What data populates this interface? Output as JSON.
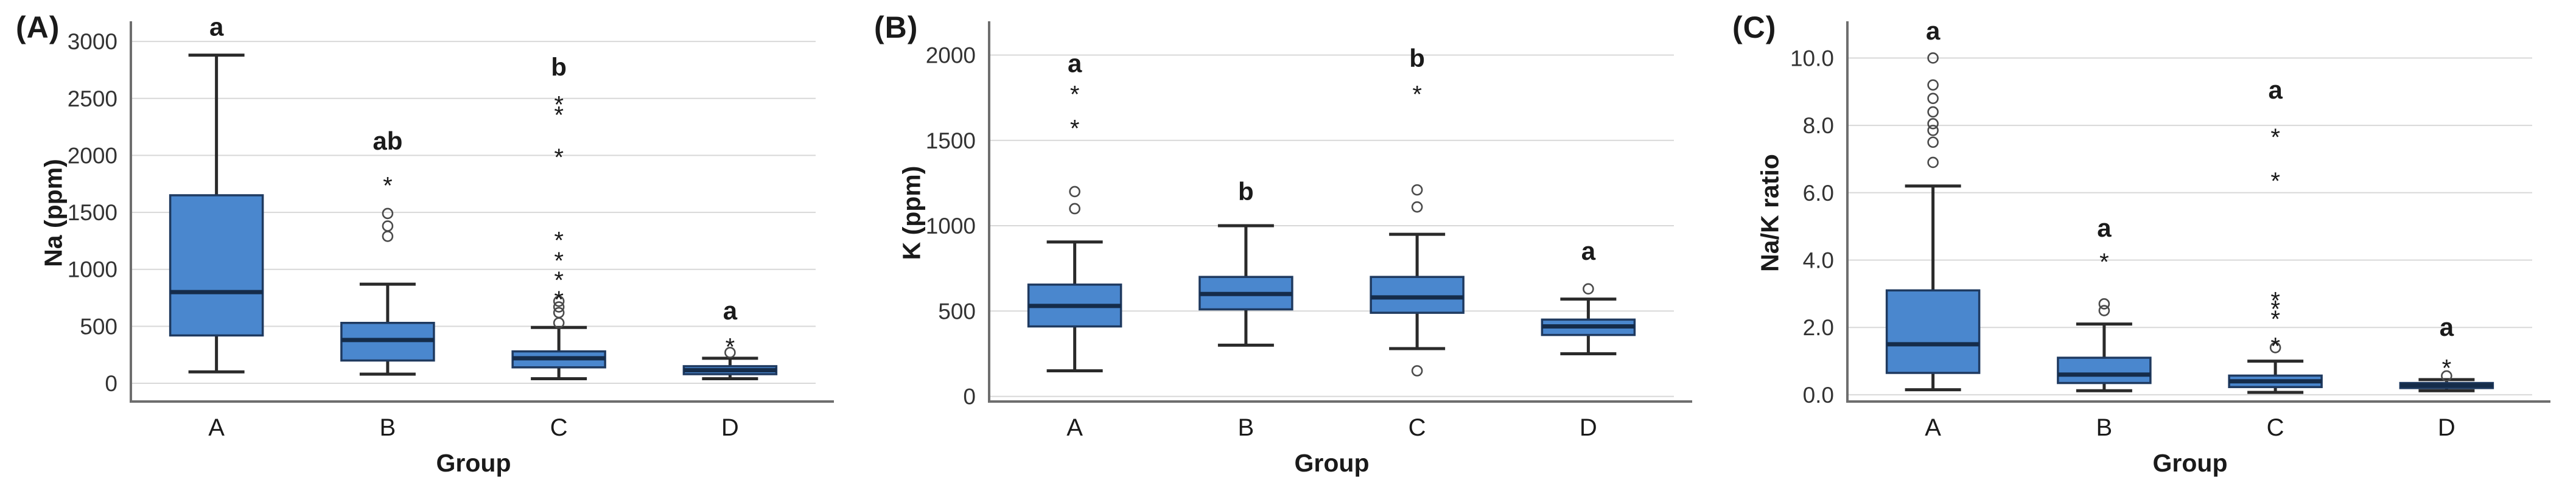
{
  "colors": {
    "box_fill": "#4a87ce",
    "box_stroke": "#1f3a60",
    "median_line": "#152c4a",
    "whisker": "#2a2a2a",
    "gridline": "#d8d8d8",
    "axis_line": "#6e6e6e",
    "text": "#1a1a1a",
    "tick_text": "#333333"
  },
  "chart_data": [
    {
      "type": "boxplot",
      "panel_label": "(A)",
      "ylabel": "Na (ppm)",
      "xlabel": "Group",
      "categories": [
        "A",
        "B",
        "C",
        "D"
      ],
      "ylim": [
        -160,
        3150
      ],
      "yticks": [
        0,
        500,
        1000,
        1500,
        2000,
        2500,
        3000
      ],
      "ytick_labels": [
        "0",
        "500",
        "1000",
        "1500",
        "2000",
        "2500",
        "3000"
      ],
      "grid": true,
      "legend": "none",
      "series": [
        {
          "group": "A",
          "sig_letter": "a",
          "letter_y": 3050,
          "whisker_low": 100,
          "q1": 420,
          "median": 800,
          "q3": 1650,
          "whisker_high": 2880,
          "outliers_circle": [],
          "outliers_star": []
        },
        {
          "group": "B",
          "sig_letter": "ab",
          "letter_y": 2050,
          "whisker_low": 80,
          "q1": 200,
          "median": 380,
          "q3": 530,
          "whisker_high": 870,
          "outliers_circle": [
            1290,
            1380,
            1490
          ],
          "outliers_star": [
            1780
          ]
        },
        {
          "group": "C",
          "sig_letter": "b",
          "letter_y": 2700,
          "whisker_low": 40,
          "q1": 140,
          "median": 220,
          "q3": 280,
          "whisker_high": 490,
          "outliers_circle": [
            530,
            620,
            670,
            720
          ],
          "outliers_star": [
            780,
            950,
            1120,
            1300,
            2030,
            2400,
            2490
          ]
        },
        {
          "group": "D",
          "sig_letter": "a",
          "letter_y": 560,
          "whisker_low": 40,
          "q1": 80,
          "median": 115,
          "q3": 150,
          "whisker_high": 220,
          "outliers_circle": [
            270
          ],
          "outliers_star": [
            365
          ]
        }
      ]
    },
    {
      "type": "boxplot",
      "panel_label": "(B)",
      "ylabel": "K (ppm)",
      "xlabel": "Group",
      "categories": [
        "A",
        "B",
        "C",
        "D"
      ],
      "ylim": [
        -30,
        2180
      ],
      "yticks": [
        0,
        500,
        1000,
        1500,
        2000
      ],
      "ytick_labels": [
        "0",
        "500",
        "1000",
        "1500",
        "2000"
      ],
      "grid": true,
      "legend": "none",
      "series": [
        {
          "group": "A",
          "sig_letter": "a",
          "letter_y": 1900,
          "whisker_low": 150,
          "q1": 410,
          "median": 530,
          "q3": 655,
          "whisker_high": 905,
          "outliers_circle": [
            1100,
            1200
          ],
          "outliers_star": [
            1600,
            1800
          ]
        },
        {
          "group": "B",
          "sig_letter": "b",
          "letter_y": 1150,
          "whisker_low": 300,
          "q1": 510,
          "median": 600,
          "q3": 700,
          "whisker_high": 1000,
          "outliers_circle": [],
          "outliers_star": []
        },
        {
          "group": "C",
          "sig_letter": "b",
          "letter_y": 1930,
          "whisker_low": 280,
          "q1": 490,
          "median": 580,
          "q3": 700,
          "whisker_high": 950,
          "outliers_circle": [
            150,
            1110,
            1210
          ],
          "outliers_star": [
            1800
          ]
        },
        {
          "group": "D",
          "sig_letter": "a",
          "letter_y": 800,
          "whisker_low": 250,
          "q1": 360,
          "median": 410,
          "q3": 450,
          "whisker_high": 570,
          "outliers_circle": [
            630
          ],
          "outliers_star": []
        }
      ]
    },
    {
      "type": "boxplot",
      "panel_label": "(C)",
      "ylabel": "Na/K ratio",
      "xlabel": "Group",
      "categories": [
        "A",
        "B",
        "C",
        "D"
      ],
      "ylim": [
        -0.2,
        11.0
      ],
      "yticks": [
        0,
        2,
        4,
        6,
        8,
        10
      ],
      "ytick_labels": [
        "0.0",
        "2.0",
        "4.0",
        "6.0",
        "8.0",
        "10.0"
      ],
      "grid": true,
      "legend": "none",
      "series": [
        {
          "group": "A",
          "sig_letter": "a",
          "letter_y": 10.55,
          "whisker_low": 0.15,
          "q1": 0.65,
          "median": 1.5,
          "q3": 3.1,
          "whisker_high": 6.2,
          "outliers_circle": [
            6.9,
            7.5,
            7.85,
            8.05,
            8.4,
            8.8,
            9.2,
            10.0
          ],
          "outliers_star": []
        },
        {
          "group": "B",
          "sig_letter": "a",
          "letter_y": 4.7,
          "whisker_low": 0.12,
          "q1": 0.35,
          "median": 0.6,
          "q3": 1.1,
          "whisker_high": 2.1,
          "outliers_circle": [
            2.5,
            2.7
          ],
          "outliers_star": [
            4.1
          ]
        },
        {
          "group": "C",
          "sig_letter": "a",
          "letter_y": 8.8,
          "whisker_low": 0.07,
          "q1": 0.23,
          "median": 0.4,
          "q3": 0.57,
          "whisker_high": 1.0,
          "outliers_circle": [
            1.4
          ],
          "outliers_star": [
            1.6,
            2.4,
            2.7,
            2.95,
            6.5,
            7.8
          ]
        },
        {
          "group": "D",
          "sig_letter": "a",
          "letter_y": 1.75,
          "whisker_low": 0.12,
          "q1": 0.2,
          "median": 0.28,
          "q3": 0.35,
          "whisker_high": 0.45,
          "outliers_circle": [
            0.56
          ],
          "outliers_star": [
            0.95
          ]
        }
      ]
    }
  ]
}
